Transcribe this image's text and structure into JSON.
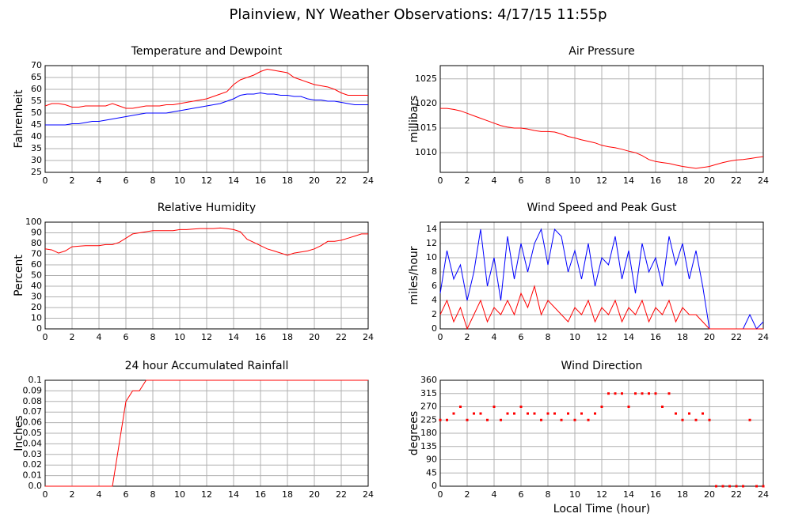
{
  "title": "Plainview, NY Weather Observations: 4/17/15 11:55p",
  "chart_data": [
    {
      "type": "line",
      "title": "Temperature and Dewpoint",
      "ylabel": "Fahrenheit",
      "x": [
        0,
        0.5,
        1,
        1.5,
        2,
        2.5,
        3,
        3.5,
        4,
        4.5,
        5,
        5.5,
        6,
        6.5,
        7,
        7.5,
        8,
        8.5,
        9,
        9.5,
        10,
        10.5,
        11,
        11.5,
        12,
        12.5,
        13,
        13.5,
        14,
        14.5,
        15,
        15.5,
        16,
        16.5,
        17,
        17.5,
        18,
        18.5,
        19,
        19.5,
        20,
        20.5,
        21,
        21.5,
        22,
        22.5,
        23,
        23.5,
        24
      ],
      "series": [
        {
          "color": "#ff0000",
          "values": [
            53,
            54,
            54,
            53.5,
            52.5,
            52.5,
            53,
            53,
            53,
            53,
            54,
            53,
            52,
            52,
            52.5,
            53,
            53,
            53,
            53.5,
            53.5,
            54,
            54.5,
            55,
            55.5,
            56,
            57,
            58,
            59,
            62,
            64,
            65,
            66,
            67.5,
            68.5,
            68,
            67.5,
            67,
            65,
            64,
            63,
            62,
            61.5,
            61,
            60,
            58.5,
            57.5,
            57.5,
            57.5,
            57.5
          ]
        },
        {
          "color": "#0000ff",
          "values": [
            45,
            45,
            45,
            45,
            45.5,
            45.5,
            46,
            46.5,
            46.5,
            47,
            47.5,
            48,
            48.5,
            49,
            49.5,
            50,
            50,
            50,
            50,
            50.5,
            51,
            51.5,
            52,
            52.5,
            53,
            53.5,
            54,
            55,
            56,
            57.5,
            58,
            58,
            58.5,
            58,
            58,
            57.5,
            57.5,
            57,
            57,
            56,
            55.5,
            55.5,
            55,
            55,
            54.5,
            54,
            53.5,
            53.5,
            53.5
          ]
        }
      ],
      "xlim": [
        0,
        24
      ],
      "xticks": [
        0,
        2,
        4,
        6,
        8,
        10,
        12,
        14,
        16,
        18,
        20,
        22,
        24
      ],
      "ylim": [
        25,
        70
      ],
      "yticks": [
        25,
        30,
        35,
        40,
        45,
        50,
        55,
        60,
        65,
        70
      ],
      "grid": true
    },
    {
      "type": "line",
      "title": "Air Pressure",
      "ylabel": "millibars",
      "x": [
        0,
        0.5,
        1,
        1.5,
        2,
        2.5,
        3,
        3.5,
        4,
        4.5,
        5,
        5.5,
        6,
        6.5,
        7,
        7.5,
        8,
        8.5,
        9,
        9.5,
        10,
        10.5,
        11,
        11.5,
        12,
        12.5,
        13,
        13.5,
        14,
        14.5,
        15,
        15.5,
        16,
        16.5,
        17,
        17.5,
        18,
        18.5,
        19,
        19.5,
        20,
        20.5,
        21,
        21.5,
        22,
        22.5,
        23,
        23.5,
        24
      ],
      "series": [
        {
          "color": "#ff0000",
          "values": [
            1019,
            1019,
            1018.8,
            1018.5,
            1018,
            1017.5,
            1017,
            1016.5,
            1016,
            1015.5,
            1015.2,
            1015,
            1015,
            1014.8,
            1014.5,
            1014.3,
            1014.3,
            1014.2,
            1013.8,
            1013.3,
            1013,
            1012.6,
            1012.3,
            1012,
            1011.5,
            1011.2,
            1011,
            1010.7,
            1010.3,
            1010,
            1009.4,
            1008.6,
            1008.2,
            1008,
            1007.8,
            1007.5,
            1007.2,
            1007,
            1006.8,
            1007,
            1007.2,
            1007.6,
            1008,
            1008.3,
            1008.5,
            1008.6,
            1008.8,
            1009,
            1009.2
          ]
        }
      ],
      "xlim": [
        0,
        24
      ],
      "xticks": [
        0,
        2,
        4,
        6,
        8,
        10,
        12,
        14,
        16,
        18,
        20,
        22,
        24
      ],
      "ylim": [
        1006,
        1027.7
      ],
      "yticks": [
        1010,
        1015,
        1020,
        1025
      ],
      "grid": true
    },
    {
      "type": "line",
      "title": "Relative Humidity",
      "ylabel": "Percent",
      "x": [
        0,
        0.5,
        1,
        1.5,
        2,
        2.5,
        3,
        3.5,
        4,
        4.5,
        5,
        5.5,
        6,
        6.5,
        7,
        7.5,
        8,
        8.5,
        9,
        9.5,
        10,
        10.5,
        11,
        11.5,
        12,
        12.5,
        13,
        13.5,
        14,
        14.5,
        15,
        15.5,
        16,
        16.5,
        17,
        17.5,
        18,
        18.5,
        19,
        19.5,
        20,
        20.5,
        21,
        21.5,
        22,
        22.5,
        23,
        23.5,
        24
      ],
      "series": [
        {
          "color": "#ff0000",
          "values": [
            75,
            74,
            71,
            73,
            77,
            77.5,
            78,
            78,
            78,
            79,
            79,
            81,
            85,
            89,
            90,
            91,
            92,
            92,
            92,
            92,
            93,
            93,
            93.5,
            94,
            94,
            94,
            94.5,
            94,
            93,
            91,
            84,
            81,
            78,
            75,
            73,
            71,
            69,
            71,
            72,
            73,
            75,
            78,
            82,
            82,
            83,
            85,
            87,
            89,
            89
          ]
        }
      ],
      "xlim": [
        0,
        24
      ],
      "xticks": [
        0,
        2,
        4,
        6,
        8,
        10,
        12,
        14,
        16,
        18,
        20,
        22,
        24
      ],
      "ylim": [
        0,
        100
      ],
      "yticks": [
        0,
        10,
        20,
        30,
        40,
        50,
        60,
        70,
        80,
        90,
        100
      ],
      "grid": true
    },
    {
      "type": "line",
      "title": "Wind Speed and Peak Gust",
      "ylabel": "miles/hour",
      "x": [
        0,
        0.5,
        1,
        1.5,
        2,
        2.5,
        3,
        3.5,
        4,
        4.5,
        5,
        5.5,
        6,
        6.5,
        7,
        7.5,
        8,
        8.5,
        9,
        9.5,
        10,
        10.5,
        11,
        11.5,
        12,
        12.5,
        13,
        13.5,
        14,
        14.5,
        15,
        15.5,
        16,
        16.5,
        17,
        17.5,
        18,
        18.5,
        19,
        19.5,
        20,
        20.5,
        21,
        21.5,
        22,
        22.5,
        23,
        23.5,
        24
      ],
      "series": [
        {
          "color": "#0000ff",
          "values": [
            5,
            11,
            7,
            9,
            4,
            8,
            14,
            6,
            10,
            4,
            13,
            7,
            12,
            8,
            12,
            14,
            9,
            14,
            13,
            8,
            11,
            7,
            12,
            6,
            10,
            9,
            13,
            7,
            11,
            5,
            12,
            8,
            10,
            6,
            13,
            9,
            12,
            7,
            11,
            6,
            0,
            0,
            0,
            0,
            0,
            0,
            2,
            0,
            1
          ]
        },
        {
          "color": "#ff0000",
          "values": [
            2,
            4,
            1,
            3,
            0,
            2,
            4,
            1,
            3,
            2,
            4,
            2,
            5,
            3,
            6,
            2,
            4,
            3,
            2,
            1,
            3,
            2,
            4,
            1,
            3,
            2,
            4,
            1,
            3,
            2,
            4,
            1,
            3,
            2,
            4,
            1,
            3,
            2,
            2,
            1,
            0,
            0,
            0,
            0,
            0,
            0,
            0,
            0,
            0
          ]
        }
      ],
      "xlim": [
        0,
        24
      ],
      "xticks": [
        0,
        2,
        4,
        6,
        8,
        10,
        12,
        14,
        16,
        18,
        20,
        22,
        24
      ],
      "ylim": [
        0,
        15
      ],
      "yticks": [
        0,
        2,
        4,
        6,
        8,
        10,
        12,
        14
      ],
      "grid": true
    },
    {
      "type": "line",
      "title": "24 hour Accumulated Rainfall",
      "ylabel": "Inches",
      "x": [
        0,
        0.5,
        1,
        1.5,
        2,
        2.5,
        3,
        3.5,
        4,
        4.5,
        5,
        5.5,
        6,
        6.5,
        7,
        7.5,
        8,
        8.5,
        9,
        9.5,
        10,
        10.5,
        11,
        11.5,
        12,
        12.5,
        13,
        13.5,
        14,
        14.5,
        15,
        15.5,
        16,
        16.5,
        17,
        17.5,
        18,
        18.5,
        19,
        19.5,
        20,
        20.5,
        21,
        21.5,
        22,
        22.5,
        23,
        23.5,
        24
      ],
      "series": [
        {
          "color": "#ff0000",
          "values": [
            0,
            0,
            0,
            0,
            0,
            0,
            0,
            0,
            0,
            0,
            0,
            0.04,
            0.08,
            0.09,
            0.09,
            0.1,
            0.1,
            0.1,
            0.1,
            0.1,
            0.1,
            0.1,
            0.1,
            0.1,
            0.1,
            0.1,
            0.1,
            0.1,
            0.1,
            0.1,
            0.1,
            0.1,
            0.1,
            0.1,
            0.1,
            0.1,
            0.1,
            0.1,
            0.1,
            0.1,
            0.1,
            0.1,
            0.1,
            0.1,
            0.1,
            0.1,
            0.1,
            0.1,
            0.1
          ]
        }
      ],
      "xlim": [
        0,
        24
      ],
      "xticks": [
        0,
        2,
        4,
        6,
        8,
        10,
        12,
        14,
        16,
        18,
        20,
        22,
        24
      ],
      "ylim": [
        0,
        0.1
      ],
      "yticks": [
        {
          "value": 0,
          "label": "0.0"
        },
        0.01,
        0.02,
        0.03,
        0.04,
        0.05,
        0.06,
        0.07,
        0.08,
        0.09,
        {
          "value": 0.1,
          "label": "0.1"
        }
      ],
      "grid": true
    },
    {
      "type": "scatter",
      "title": "Wind Direction",
      "ylabel": "degrees",
      "xlabel": "Local Time (hour)",
      "x": [
        0,
        0.5,
        1,
        1.5,
        2,
        2.5,
        3,
        3.5,
        4,
        4.5,
        5,
        5.5,
        6,
        6.5,
        7,
        7.5,
        8,
        8.5,
        9,
        9.5,
        10,
        10.5,
        11,
        11.5,
        12,
        12.5,
        13,
        13.5,
        14,
        14.5,
        15,
        15.5,
        16,
        16.5,
        17,
        17.5,
        18,
        18.5,
        19,
        19.5,
        20,
        20.5,
        21,
        21.5,
        22,
        22.5,
        23,
        23.5,
        24
      ],
      "series": [
        {
          "color": "#ff0000",
          "values": [
            225,
            225,
            247,
            270,
            225,
            247,
            247,
            225,
            270,
            225,
            247,
            247,
            270,
            247,
            247,
            225,
            247,
            247,
            225,
            247,
            225,
            247,
            225,
            247,
            270,
            315,
            315,
            315,
            270,
            315,
            315,
            315,
            315,
            270,
            315,
            247,
            225,
            247,
            225,
            247,
            225,
            0,
            0,
            0,
            0,
            0,
            225,
            0,
            0
          ]
        }
      ],
      "xlim": [
        0,
        24
      ],
      "xticks": [
        0,
        2,
        4,
        6,
        8,
        10,
        12,
        14,
        16,
        18,
        20,
        22,
        24
      ],
      "ylim": [
        0,
        360
      ],
      "yticks": [
        0,
        45,
        90,
        135,
        180,
        225,
        270,
        315,
        360
      ],
      "grid": true
    }
  ]
}
